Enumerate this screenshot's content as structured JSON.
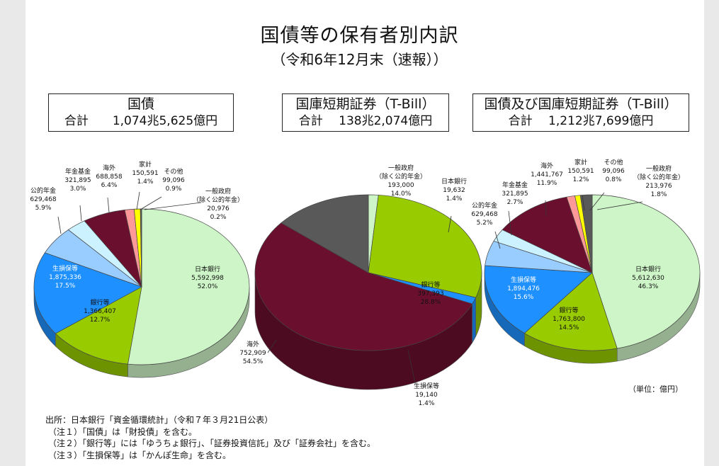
{
  "title": "国債等の保有者別内訳",
  "subtitle": "（令和6年12月末（速報））",
  "unit_note": "（単位：億円）",
  "notes": [
    "出所：日本銀行「資金循環統計」（令和７年３月21日公表）",
    "（注１）「国債」は「財投債」を含む。",
    "（注２）「銀行等」には「ゆうちょ銀行」、「証券投資信託」及び「証券会社」を含む。",
    "（注３）「生損保等」は「かんぽ生命」を含む。"
  ],
  "boxes": [
    {
      "title": "国債",
      "total": "合計　　1,074兆5,625億円"
    },
    {
      "title": "国庫短期証券（T-Bill）",
      "total": "合計　 138兆2,074億円"
    },
    {
      "title": "国債及び国庫短期証券（T-Bill）",
      "total": "合計　 1,212兆7,699億円"
    }
  ],
  "colors": {
    "日本銀行": "#cdf5c7",
    "銀行等": "#99cc00",
    "生損保等": "#1e90ff",
    "公的年金": "#99ccff",
    "年金基金": "#ccf2ff",
    "海外": "#6b0f2e",
    "家計": "#ff9999",
    "その他": "#ffff00",
    "一般政府": "#595959"
  },
  "chart_data": [
    {
      "type": "pie",
      "title": "国債",
      "slices": [
        {
          "label": "日本銀行",
          "value": 5592998,
          "value_text": "5,592,998",
          "pct": "52.0%"
        },
        {
          "label": "銀行等",
          "value": 1366407,
          "value_text": "1,366,407",
          "pct": "12.7%"
        },
        {
          "label": "生損保等",
          "value": 1875336,
          "value_text": "1,875,336",
          "pct": "17.5%"
        },
        {
          "label": "公的年金",
          "value": 629468,
          "value_text": "629,468",
          "pct": "5.9%"
        },
        {
          "label": "年金基金",
          "value": 321895,
          "value_text": "321,895",
          "pct": "3.0%"
        },
        {
          "label": "海外",
          "value": 688858,
          "value_text": "688,858",
          "pct": "6.4%"
        },
        {
          "label": "家計",
          "value": 150591,
          "value_text": "150,591",
          "pct": "1.4%"
        },
        {
          "label": "その他",
          "value": 99096,
          "value_text": "99,096",
          "pct": "0.9%"
        },
        {
          "label": "一般政府",
          "label_sub": "（除く公的年金）",
          "value": 20976,
          "value_text": "20,976",
          "pct": "0.2%"
        }
      ]
    },
    {
      "type": "pie",
      "title": "国庫短期証券（T-Bill）",
      "slices": [
        {
          "label": "日本銀行",
          "value": 19632,
          "value_text": "19,632",
          "pct": "1.4%"
        },
        {
          "label": "銀行等",
          "value": 397393,
          "value_text": "397,393",
          "pct": "28.8%"
        },
        {
          "label": "生損保等",
          "value": 19140,
          "value_text": "19,140",
          "pct": "1.4%"
        },
        {
          "label": "海外",
          "value": 752909,
          "value_text": "752,909",
          "pct": "54.5%"
        },
        {
          "label": "一般政府",
          "label_sub": "（除く公的年金）",
          "value": 193000,
          "value_text": "193,000",
          "pct": "14.0%"
        }
      ]
    },
    {
      "type": "pie",
      "title": "国債及び国庫短期証券（T-Bill）",
      "slices": [
        {
          "label": "日本銀行",
          "value": 5612630,
          "value_text": "5,612,630",
          "pct": "46.3%"
        },
        {
          "label": "銀行等",
          "value": 1763800,
          "value_text": "1,763,800",
          "pct": "14.5%"
        },
        {
          "label": "生損保等",
          "value": 1894476,
          "value_text": "1,894,476",
          "pct": "15.6%"
        },
        {
          "label": "公的年金",
          "value": 629468,
          "value_text": "629,468",
          "pct": "5.2%"
        },
        {
          "label": "年金基金",
          "value": 321895,
          "value_text": "321,895",
          "pct": "2.7%"
        },
        {
          "label": "海外",
          "value": 1441767,
          "value_text": "1,441,767",
          "pct": "11.9%"
        },
        {
          "label": "家計",
          "value": 150591,
          "value_text": "150,591",
          "pct": "1.2%"
        },
        {
          "label": "その他",
          "value": 99096,
          "value_text": "99,096",
          "pct": "0.8%"
        },
        {
          "label": "一般政府",
          "label_sub": "（除く公的年金）",
          "value": 213976,
          "value_text": "213,976",
          "pct": "1.8%"
        }
      ]
    }
  ]
}
